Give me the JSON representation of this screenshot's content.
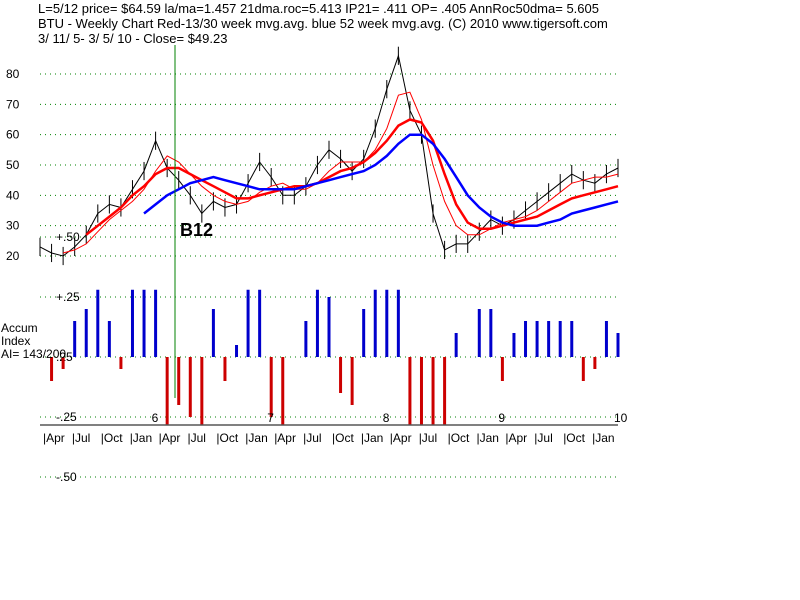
{
  "header": {
    "line1": "L=5/12  price= $64.59  la/ma=1.457 21dma.roc=5.413 IP21= .411 OP= .405 AnnRoc50dma= 5.605",
    "line2": "BTU  - Weekly Chart  Red-13/30 week mvg.avg.  blue 52 week mvg.avg.  (C) 2010 www.tigersoft.com",
    "line3": " 3/ 11/ 5- 3/ 5/ 10 -      Close= $49.23"
  },
  "signal_label": "B12",
  "accum_panel": {
    "title1": "Accum",
    "title2": "Index",
    "ai_text": "AI= 143/200",
    "y_ticks": [
      "+.50",
      "+.25",
      ".25",
      "-.25",
      "-.50"
    ]
  },
  "colors": {
    "price_bars": "#000000",
    "ma_short": "#ff0000",
    "ma_long": "#ff0000",
    "ma_52": "#0000ff",
    "accum_positive": "#0000cc",
    "accum_negative": "#cc0000",
    "signal_line": "#008000",
    "grid": "#008000"
  },
  "chart_data": {
    "type": "line",
    "title": "BTU  - Weekly Chart",
    "ylim": [
      15,
      90
    ],
    "y_ticks": [
      "80",
      "70",
      "60",
      "50",
      "40",
      "30",
      "20"
    ],
    "year_labels": [
      "6",
      "7",
      "8",
      "9",
      "10"
    ],
    "month_labels": [
      "Apr",
      "Jul",
      "Oct",
      "Jan",
      "Apr",
      "Jul",
      "Oct",
      "Jan",
      "Apr",
      "Jul",
      "Oct",
      "Jan",
      "Apr",
      "Jul",
      "Oct",
      "Jan",
      "Apr",
      "Jul",
      "Oct",
      "Jan"
    ],
    "x": [
      0,
      0.1,
      0.2,
      0.3,
      0.4,
      0.5,
      0.6,
      0.7,
      0.8,
      0.9,
      1.0,
      1.1,
      1.2,
      1.3,
      1.4,
      1.5,
      1.6,
      1.7,
      1.8,
      1.9,
      2.0,
      2.1,
      2.2,
      2.3,
      2.4,
      2.5,
      2.6,
      2.7,
      2.8,
      2.9,
      3.0,
      3.1,
      3.2,
      3.3,
      3.4,
      3.5,
      3.6,
      3.7,
      3.8,
      3.9,
      4.0,
      4.1,
      4.2,
      4.3,
      4.4,
      4.5,
      4.6,
      4.7,
      4.8,
      4.9,
      5.0
    ],
    "series": [
      {
        "name": "price",
        "values": [
          23,
          21,
          20,
          23,
          27,
          34,
          37,
          36,
          42,
          48,
          58,
          49,
          45,
          40,
          34,
          38,
          36,
          37,
          44,
          51,
          46,
          40,
          40,
          43,
          50,
          55,
          52,
          48,
          52,
          62,
          75,
          86,
          68,
          60,
          34,
          22,
          24,
          24,
          28,
          32,
          30,
          32,
          35,
          38,
          41,
          44,
          47,
          45,
          44,
          47,
          49
        ]
      },
      {
        "name": "Red-13 week mvg.avg.",
        "values": [
          null,
          null,
          21,
          22,
          24,
          28,
          32,
          35,
          38,
          42,
          48,
          53,
          51,
          47,
          43,
          40,
          38,
          37,
          38,
          41,
          43,
          44,
          42,
          42,
          44,
          48,
          51,
          51,
          51,
          55,
          62,
          73,
          74,
          65,
          50,
          38,
          30,
          27,
          27,
          29,
          31,
          32,
          33,
          35,
          38,
          41,
          44,
          45,
          46,
          46,
          47
        ]
      },
      {
        "name": "Red-30 week mvg.avg.",
        "values": [
          null,
          null,
          null,
          null,
          27,
          30,
          33,
          36,
          40,
          43,
          47,
          49,
          49,
          47,
          45,
          43,
          41,
          39,
          39,
          40,
          41,
          42,
          43,
          43,
          44,
          46,
          48,
          49,
          51,
          54,
          58,
          63,
          65,
          64,
          58,
          47,
          37,
          31,
          29,
          29,
          30,
          31,
          32,
          33,
          35,
          37,
          39,
          40,
          41,
          42,
          43
        ]
      },
      {
        "name": "blue 52 week mvg.avg.",
        "values": [
          null,
          null,
          null,
          null,
          null,
          null,
          null,
          null,
          null,
          34,
          37,
          40,
          42,
          44,
          45,
          46,
          45,
          44,
          43,
          42,
          42,
          42,
          42,
          43,
          44,
          45,
          46,
          47,
          48,
          50,
          53,
          57,
          60,
          60,
          57,
          52,
          46,
          40,
          36,
          33,
          31,
          30,
          30,
          30,
          31,
          32,
          34,
          35,
          36,
          37,
          38
        ]
      }
    ]
  }
}
